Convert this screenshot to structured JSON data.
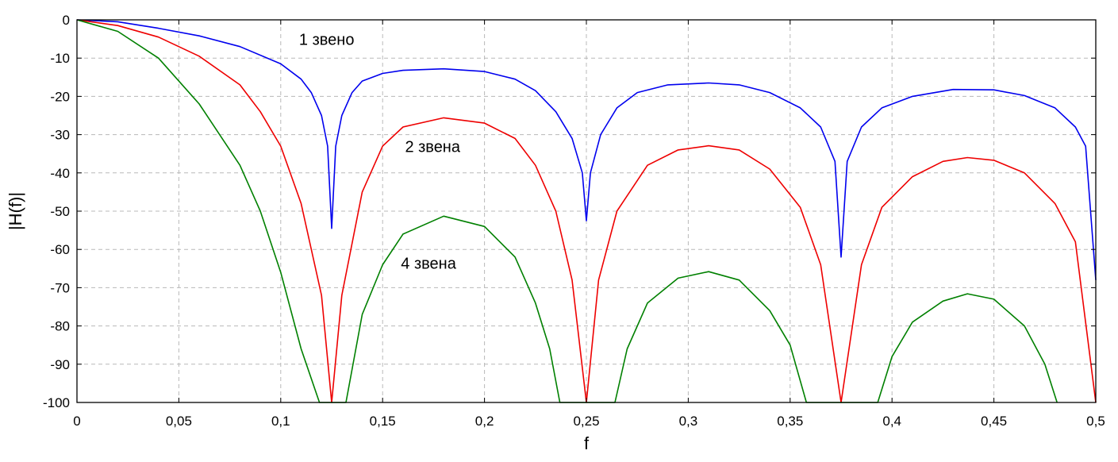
{
  "chart_data": {
    "type": "line",
    "xlabel": "f",
    "ylabel": "|H(f)|",
    "xlim": [
      0,
      0.5
    ],
    "ylim": [
      -100,
      0
    ],
    "grid": true,
    "x_ticks": [
      {
        "v": 0,
        "label": "0"
      },
      {
        "v": 0.05,
        "label": "0,05"
      },
      {
        "v": 0.1,
        "label": "0,1"
      },
      {
        "v": 0.15,
        "label": "0,15"
      },
      {
        "v": 0.2,
        "label": "0,2"
      },
      {
        "v": 0.25,
        "label": "0,25"
      },
      {
        "v": 0.3,
        "label": "0,3"
      },
      {
        "v": 0.35,
        "label": "0,35"
      },
      {
        "v": 0.4,
        "label": "0,4"
      },
      {
        "v": 0.45,
        "label": "0,45"
      },
      {
        "v": 0.5,
        "label": "0,5"
      }
    ],
    "y_ticks": [
      {
        "v": 0,
        "label": "0"
      },
      {
        "v": -10,
        "label": "-10"
      },
      {
        "v": -20,
        "label": "-20"
      },
      {
        "v": -30,
        "label": "-30"
      },
      {
        "v": -40,
        "label": "-40"
      },
      {
        "v": -50,
        "label": "-50"
      },
      {
        "v": -60,
        "label": "-60"
      },
      {
        "v": -70,
        "label": "-70"
      },
      {
        "v": -80,
        "label": "-80"
      },
      {
        "v": -90,
        "label": "-90"
      },
      {
        "v": -100,
        "label": "-100"
      }
    ],
    "series": [
      {
        "color": "#0000ee",
        "points": [
          [
            0,
            0
          ],
          [
            0.02,
            -0.5
          ],
          [
            0.04,
            -2.2
          ],
          [
            0.06,
            -4.2
          ],
          [
            0.08,
            -7.0
          ],
          [
            0.1,
            -11.5
          ],
          [
            0.11,
            -15.5
          ],
          [
            0.115,
            -19
          ],
          [
            0.12,
            -25
          ],
          [
            0.123,
            -33
          ],
          [
            0.125,
            -54.5
          ],
          [
            0.127,
            -33
          ],
          [
            0.13,
            -25
          ],
          [
            0.135,
            -19
          ],
          [
            0.14,
            -16
          ],
          [
            0.15,
            -14
          ],
          [
            0.16,
            -13.2
          ],
          [
            0.18,
            -12.8
          ],
          [
            0.2,
            -13.5
          ],
          [
            0.215,
            -15.5
          ],
          [
            0.225,
            -18.5
          ],
          [
            0.235,
            -24
          ],
          [
            0.243,
            -31
          ],
          [
            0.248,
            -40
          ],
          [
            0.25,
            -52.5
          ],
          [
            0.252,
            -40
          ],
          [
            0.257,
            -30
          ],
          [
            0.265,
            -23
          ],
          [
            0.275,
            -19
          ],
          [
            0.29,
            -17
          ],
          [
            0.31,
            -16.5
          ],
          [
            0.325,
            -17
          ],
          [
            0.34,
            -19
          ],
          [
            0.355,
            -23
          ],
          [
            0.365,
            -28
          ],
          [
            0.372,
            -37
          ],
          [
            0.375,
            -62
          ],
          [
            0.378,
            -37
          ],
          [
            0.385,
            -28
          ],
          [
            0.395,
            -23
          ],
          [
            0.41,
            -20
          ],
          [
            0.43,
            -18.2
          ],
          [
            0.45,
            -18.3
          ],
          [
            0.465,
            -19.8
          ],
          [
            0.48,
            -23
          ],
          [
            0.49,
            -28
          ],
          [
            0.495,
            -33
          ],
          [
            0.5,
            -68
          ]
        ]
      },
      {
        "color": "#ee0000",
        "points": [
          [
            0,
            0
          ],
          [
            0.02,
            -1.5
          ],
          [
            0.04,
            -4.5
          ],
          [
            0.06,
            -9.5
          ],
          [
            0.08,
            -17
          ],
          [
            0.09,
            -24
          ],
          [
            0.1,
            -33
          ],
          [
            0.11,
            -48
          ],
          [
            0.12,
            -72
          ],
          [
            0.125,
            -100
          ],
          [
            0.13,
            -72
          ],
          [
            0.14,
            -45
          ],
          [
            0.15,
            -33
          ],
          [
            0.16,
            -28
          ],
          [
            0.18,
            -25.6
          ],
          [
            0.2,
            -27
          ],
          [
            0.215,
            -31
          ],
          [
            0.225,
            -38
          ],
          [
            0.235,
            -50
          ],
          [
            0.243,
            -68
          ],
          [
            0.25,
            -100
          ],
          [
            0.256,
            -68
          ],
          [
            0.265,
            -50
          ],
          [
            0.28,
            -38
          ],
          [
            0.295,
            -34
          ],
          [
            0.31,
            -32.9
          ],
          [
            0.325,
            -34
          ],
          [
            0.34,
            -39
          ],
          [
            0.355,
            -49
          ],
          [
            0.365,
            -64
          ],
          [
            0.375,
            -100
          ],
          [
            0.385,
            -64
          ],
          [
            0.395,
            -49
          ],
          [
            0.41,
            -41
          ],
          [
            0.425,
            -37
          ],
          [
            0.437,
            -36
          ],
          [
            0.45,
            -36.7
          ],
          [
            0.465,
            -40
          ],
          [
            0.48,
            -48
          ],
          [
            0.49,
            -58
          ],
          [
            0.5,
            -100
          ]
        ]
      },
      {
        "color": "#008000",
        "points": [
          [
            0,
            0
          ],
          [
            0.02,
            -3
          ],
          [
            0.04,
            -10
          ],
          [
            0.06,
            -22
          ],
          [
            0.08,
            -38
          ],
          [
            0.09,
            -50
          ],
          [
            0.1,
            -66
          ],
          [
            0.11,
            -86
          ],
          [
            0.119,
            -100
          ],
          [
            0.132,
            -100
          ],
          [
            0.14,
            -77
          ],
          [
            0.15,
            -64
          ],
          [
            0.16,
            -56
          ],
          [
            0.18,
            -51.3
          ],
          [
            0.2,
            -54
          ],
          [
            0.215,
            -62
          ],
          [
            0.225,
            -74
          ],
          [
            0.232,
            -86
          ],
          [
            0.237,
            -100
          ],
          [
            0.264,
            -100
          ],
          [
            0.27,
            -86
          ],
          [
            0.28,
            -74
          ],
          [
            0.295,
            -67.5
          ],
          [
            0.31,
            -65.8
          ],
          [
            0.325,
            -68
          ],
          [
            0.34,
            -76
          ],
          [
            0.35,
            -85
          ],
          [
            0.358,
            -100
          ],
          [
            0.393,
            -100
          ],
          [
            0.4,
            -88
          ],
          [
            0.41,
            -79
          ],
          [
            0.425,
            -73.5
          ],
          [
            0.437,
            -71.6
          ],
          [
            0.45,
            -73
          ],
          [
            0.465,
            -80
          ],
          [
            0.475,
            -90
          ],
          [
            0.481,
            -100
          ]
        ]
      }
    ],
    "annotations": [
      {
        "text": "1 звено",
        "x": 0.109,
        "y": -6.5
      },
      {
        "text": "2 звена",
        "x": 0.161,
        "y": -34.5
      },
      {
        "text": "4 звена",
        "x": 0.159,
        "y": -65
      }
    ]
  }
}
